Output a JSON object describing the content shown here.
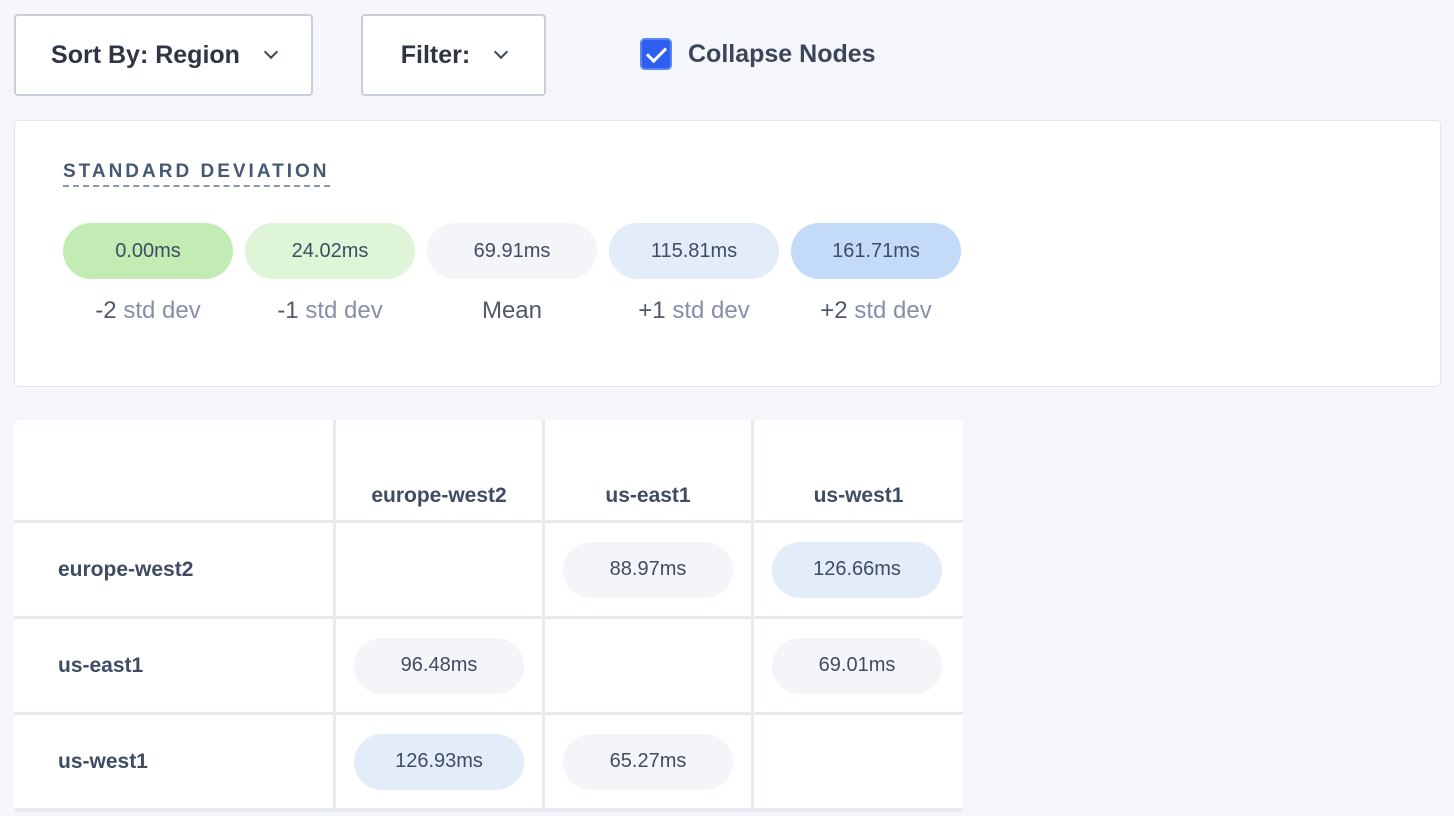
{
  "toolbar": {
    "sort_label": "Sort By: Region",
    "filter_label": "Filter:",
    "collapse_label": "Collapse Nodes",
    "collapse_checked": true
  },
  "legend": {
    "title": "STANDARD DEVIATION",
    "items": [
      {
        "value": "0.00ms",
        "prefix": "-2",
        "suffix": "std dev",
        "color": "#c2ecb4"
      },
      {
        "value": "24.02ms",
        "prefix": "-1",
        "suffix": "std dev",
        "color": "#dff5d8"
      },
      {
        "value": "69.91ms",
        "prefix": "Mean",
        "suffix": "",
        "color": "#f4f5f9"
      },
      {
        "value": "115.81ms",
        "prefix": "+1",
        "suffix": "std dev",
        "color": "#e3ecf9"
      },
      {
        "value": "161.71ms",
        "prefix": "+2",
        "suffix": "std dev",
        "color": "#c3dbf8"
      }
    ]
  },
  "matrix": {
    "columns": [
      "europe-west2",
      "us-east1",
      "us-west1"
    ],
    "rows": [
      {
        "label": "europe-west2",
        "cells": [
          null,
          {
            "value": "88.97ms",
            "color": "#f4f5f9"
          },
          {
            "value": "126.66ms",
            "color": "#e3ecf9"
          }
        ]
      },
      {
        "label": "us-east1",
        "cells": [
          {
            "value": "96.48ms",
            "color": "#f4f5f9"
          },
          null,
          {
            "value": "69.01ms",
            "color": "#f4f5f9"
          }
        ]
      },
      {
        "label": "us-west1",
        "cells": [
          {
            "value": "126.93ms",
            "color": "#e3ecf9"
          },
          {
            "value": "65.27ms",
            "color": "#f4f5f9"
          },
          null
        ]
      }
    ]
  }
}
